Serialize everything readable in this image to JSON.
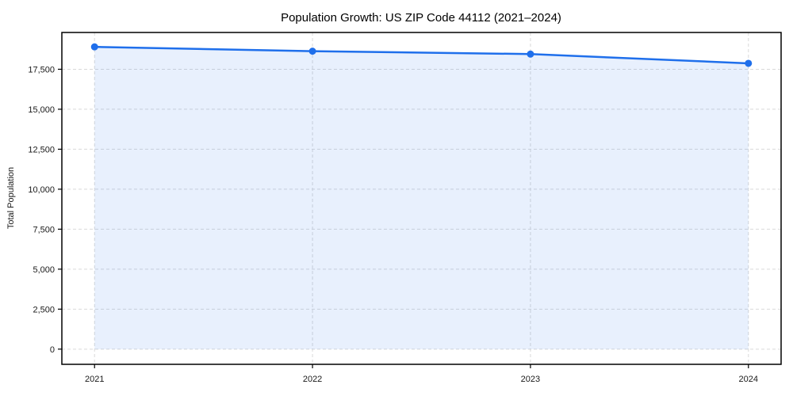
{
  "figure": {
    "background": "#ffffff"
  },
  "chart_data": {
    "type": "line",
    "title": "Population Growth: US ZIP Code 44112 (2021–2024)",
    "xlabel": "",
    "ylabel": "Total Population",
    "x": [
      2021,
      2022,
      2023,
      2024
    ],
    "x_tick_labels": [
      "2021",
      "2022",
      "2023",
      "2024"
    ],
    "series": [
      {
        "name": "Total Population",
        "values": [
          18900,
          18630,
          18450,
          17870
        ]
      }
    ],
    "fill_to_zero": true,
    "marker": "circle",
    "grid": true,
    "grid_style": "dashed",
    "legend_position": "none",
    "xlim": [
      2020.85,
      2024.15
    ],
    "ylim": [
      -950,
      19800
    ],
    "yticks": [
      0,
      2500,
      5000,
      7500,
      10000,
      12500,
      15000,
      17500
    ],
    "ytick_labels": [
      "0",
      "2,500",
      "5,000",
      "7,500",
      "10,000",
      "12,500",
      "15,000",
      "17,500"
    ],
    "colors": {
      "line": "#1f6feb",
      "fill": "rgba(31,111,235,0.10)",
      "grid": "#d9d9d9",
      "spine": "#000000",
      "text": "#191919",
      "title": "#000000"
    }
  }
}
